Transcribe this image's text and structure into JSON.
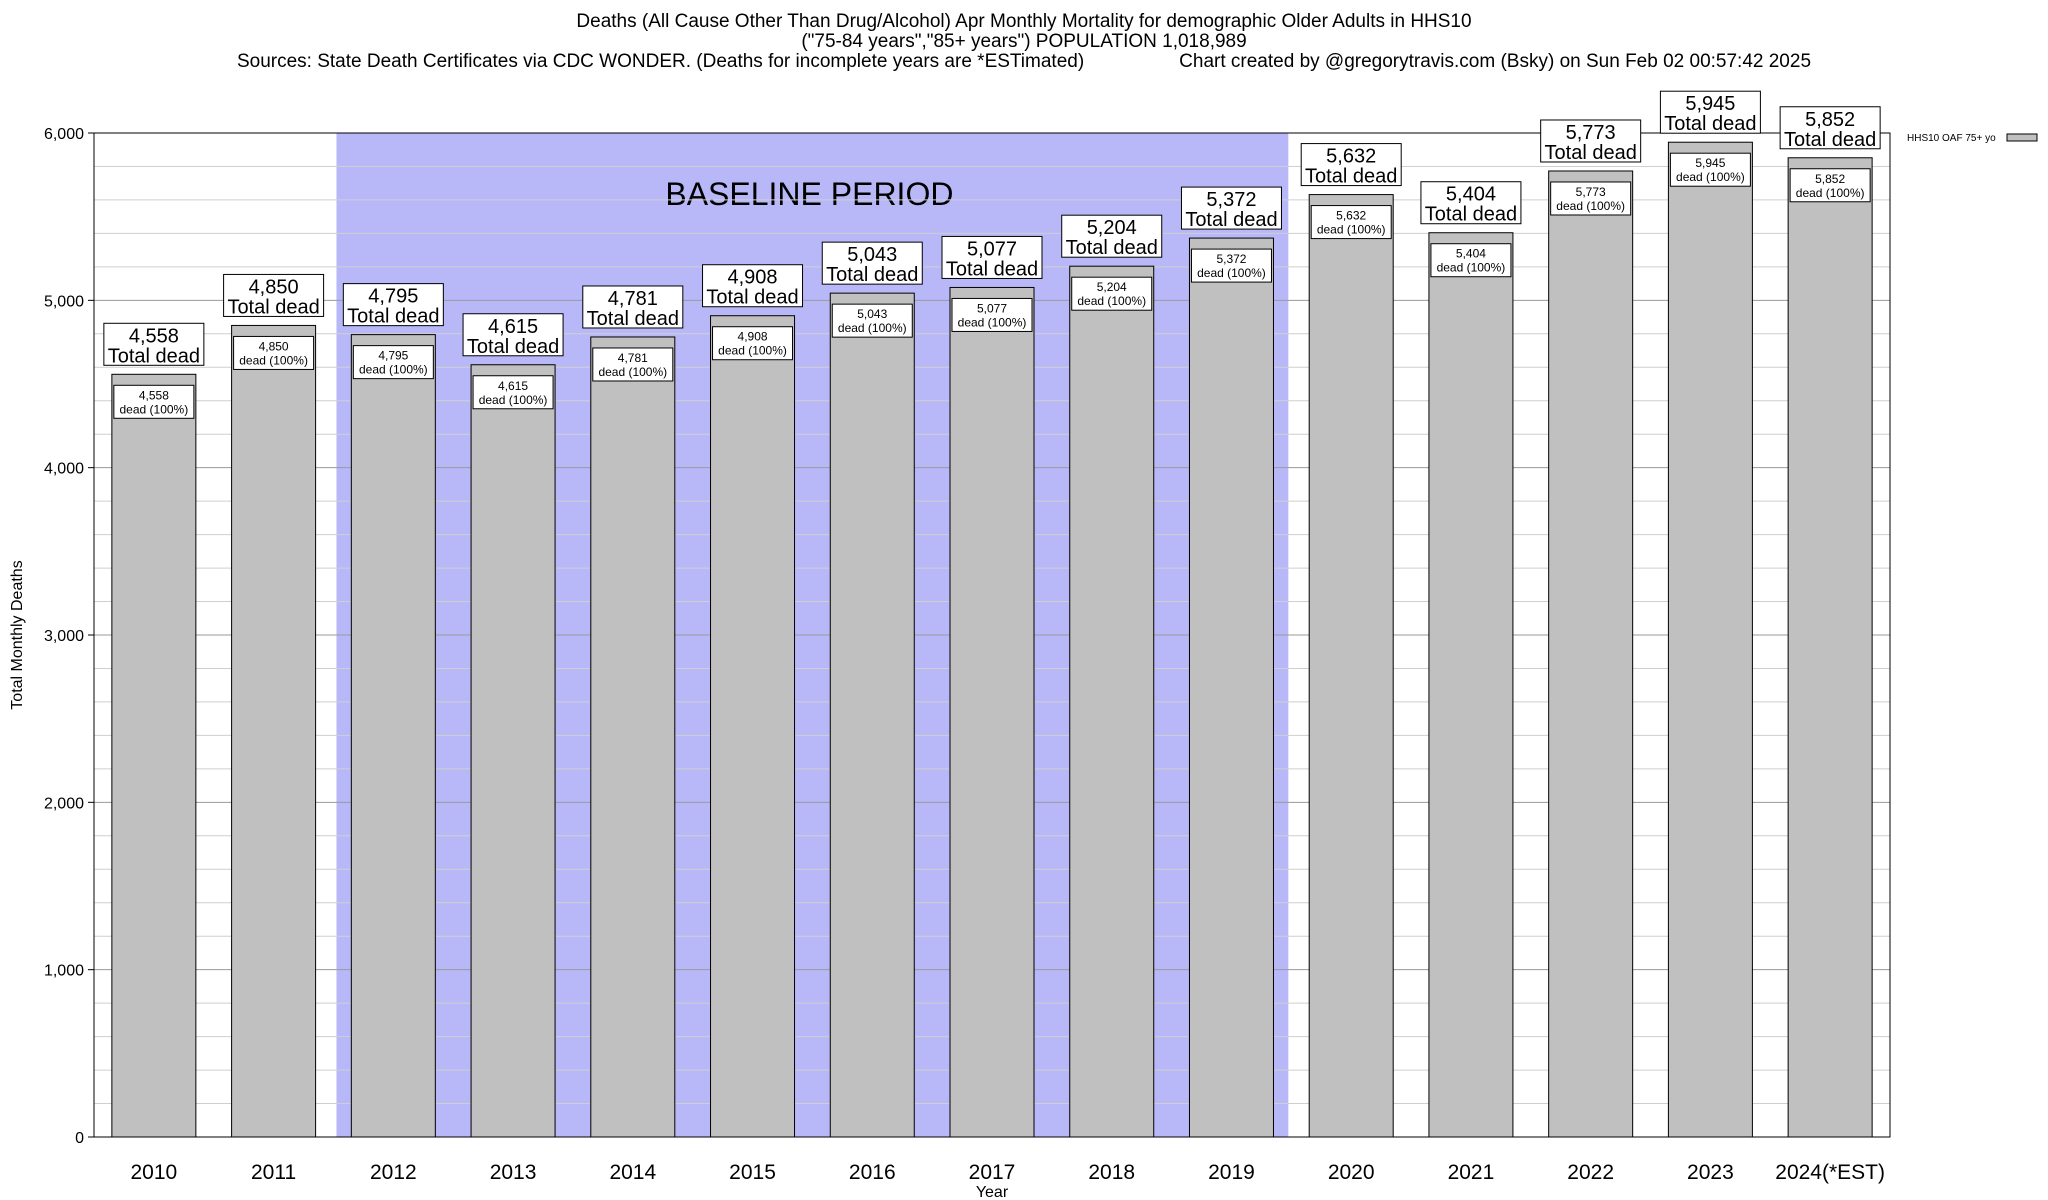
{
  "title": {
    "line1": "Deaths (All Cause Other Than Drug/Alcohol) Apr Monthly Mortality for demographic Older Adults in HHS10",
    "line2": "(\"75-84 years\",\"85+ years\") POPULATION 1,018,989",
    "sources": "Sources: State Death Certificates via CDC WONDER. (Deaths for incomplete years are *ESTimated)",
    "credit": "Chart created by @gregorytravis.com (Bsky) on Sun Feb 02 00:57:42 2025"
  },
  "chart_data": {
    "type": "bar",
    "xlabel": "Year",
    "ylabel": "Total Monthly Deaths",
    "ylim": [
      0,
      6000
    ],
    "yticks": [
      0,
      1000,
      2000,
      3000,
      4000,
      5000,
      6000
    ],
    "ytick_labels": [
      "0",
      "1,000",
      "2,000",
      "3,000",
      "4,000",
      "5,000",
      "6,000"
    ],
    "categories": [
      "2010",
      "2011",
      "2012",
      "2013",
      "2014",
      "2015",
      "2016",
      "2017",
      "2018",
      "2019",
      "2020",
      "2021",
      "2022",
      "2023",
      "2024(*EST)"
    ],
    "series": [
      {
        "name": "HHS10 OAF 75+ yo",
        "values": [
          4558,
          4850,
          4795,
          4615,
          4781,
          4908,
          5043,
          5077,
          5204,
          5372,
          5632,
          5404,
          5773,
          5945,
          5852
        ],
        "color": "#c0c0c0"
      }
    ],
    "value_labels": [
      "4,558",
      "4,850",
      "4,795",
      "4,615",
      "4,781",
      "4,908",
      "5,043",
      "5,077",
      "5,204",
      "5,372",
      "5,632",
      "5,404",
      "5,773",
      "5,945",
      "5,852"
    ],
    "top_label_suffix": "Total dead",
    "inner_label_suffix": "dead (100%)",
    "baseline_period": {
      "label": "BASELINE PERIOD",
      "start": "2012",
      "end": "2019",
      "color": "#b8b8f8"
    },
    "grid": true,
    "minor_grid_step": 200,
    "legend_position": "top-right"
  }
}
